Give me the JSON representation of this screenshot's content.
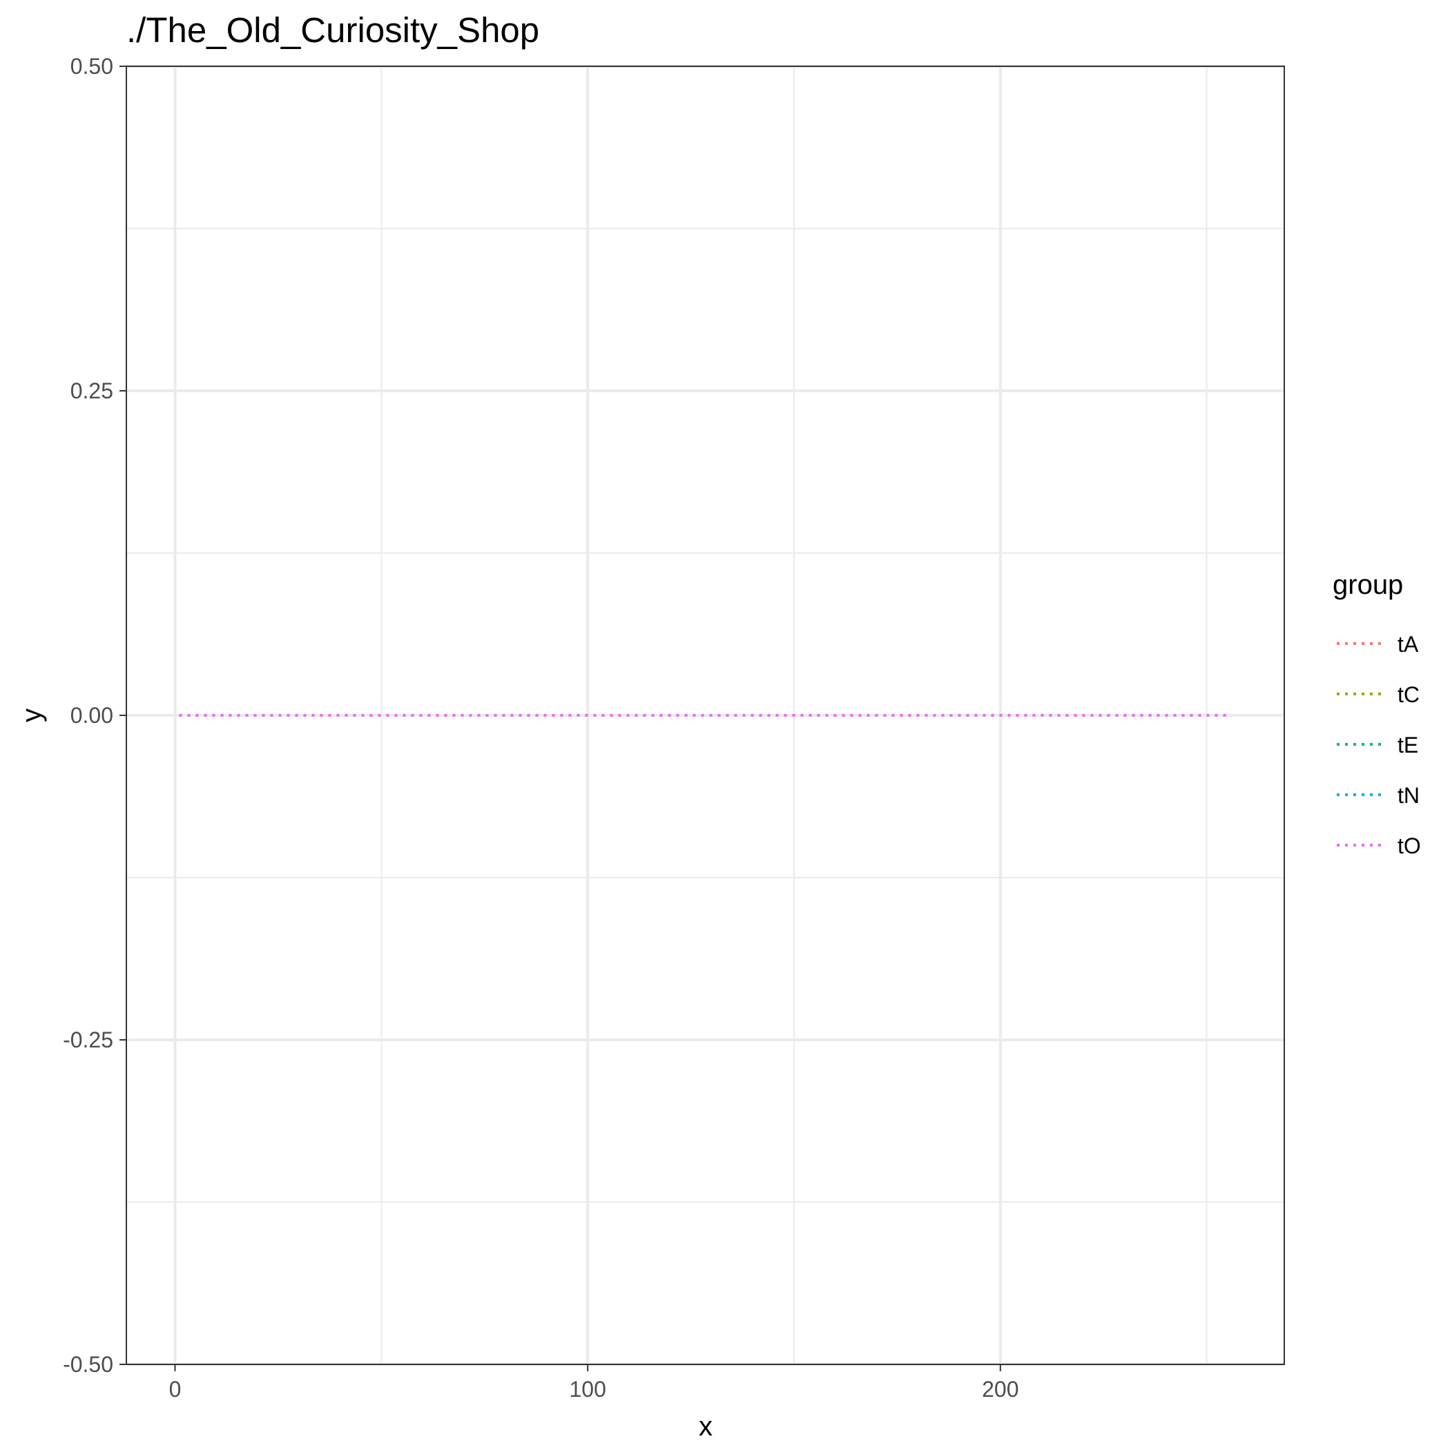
{
  "chart_data": {
    "type": "line",
    "title": "./The_Old_Curiosity_Shop",
    "xlabel": "x",
    "ylabel": "y",
    "xlim": [
      -11.8,
      268.8
    ],
    "ylim": [
      -0.5,
      0.5
    ],
    "x_ticks": [
      0,
      100,
      200
    ],
    "x_tick_labels": [
      "0",
      "100",
      "200"
    ],
    "x_minor_ticks": [
      50,
      150,
      250
    ],
    "y_ticks": [
      -0.5,
      -0.25,
      0,
      0.25,
      0.5
    ],
    "y_tick_labels": [
      "-0.50",
      "-0.25",
      "0.00",
      "0.25",
      "0.50"
    ],
    "y_minor_ticks": [
      -0.375,
      -0.125,
      0.125,
      0.375
    ],
    "grid": true,
    "line_style": "dotted",
    "legend": {
      "title": "group",
      "position": "right"
    },
    "series": [
      {
        "name": "tA",
        "color": "#F8766D",
        "x": [
          1,
          255
        ],
        "y": [
          0,
          0
        ]
      },
      {
        "name": "tC",
        "color": "#A3A500",
        "x": [
          1,
          255
        ],
        "y": [
          0,
          0
        ]
      },
      {
        "name": "tE",
        "color": "#00BF7D",
        "x": [
          1,
          255
        ],
        "y": [
          0,
          0
        ]
      },
      {
        "name": "tN",
        "color": "#00B0F6",
        "x": [
          1,
          255
        ],
        "y": [
          0,
          0
        ]
      },
      {
        "name": "tO",
        "color": "#E76BF3",
        "x": [
          1,
          255
        ],
        "y": [
          0,
          0
        ]
      }
    ]
  }
}
